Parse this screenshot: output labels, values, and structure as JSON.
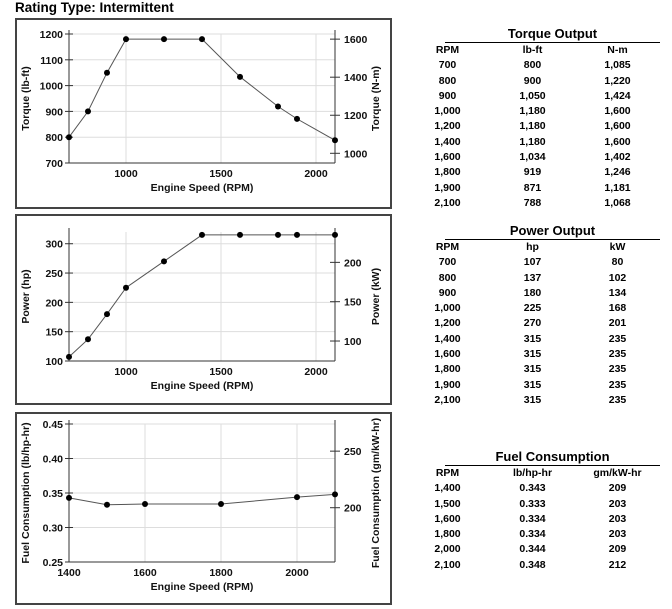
{
  "title": "Rating Type: Intermittent",
  "chart_data": [
    {
      "type": "line",
      "xlabel": "Engine Speed (RPM)",
      "ylabel": "Torque (lb-ft)",
      "y2label": "Torque (N-m)",
      "x": [
        700,
        800,
        900,
        1000,
        1200,
        1400,
        1600,
        1800,
        1900,
        2100
      ],
      "series": [
        {
          "values": [
            800,
            900,
            1050,
            1180,
            1180,
            1180,
            1034,
            919,
            871,
            788
          ]
        }
      ],
      "xlim": [
        700,
        2100
      ],
      "ylim": [
        700,
        1200
      ],
      "y2lim": [
        949,
        1627
      ],
      "xticks": [
        1000,
        1500,
        2000
      ],
      "yticks": [
        700,
        800,
        900,
        1000,
        1100,
        1200
      ],
      "y2ticks": [
        1000,
        1200,
        1400,
        1600
      ],
      "grid": true
    },
    {
      "type": "line",
      "xlabel": "Engine Speed (RPM)",
      "ylabel": "Power (hp)",
      "y2label": "Power (kW)",
      "x": [
        700,
        800,
        900,
        1000,
        1200,
        1400,
        1600,
        1800,
        1900,
        2100
      ],
      "series": [
        {
          "values": [
            107,
            137,
            180,
            225,
            270,
            315,
            315,
            315,
            315,
            315
          ]
        }
      ],
      "xlim": [
        700,
        2100
      ],
      "ylim": [
        100,
        320
      ],
      "y2lim": [
        74.6,
        238.6
      ],
      "xticks": [
        1000,
        1500,
        2000
      ],
      "yticks": [
        100,
        150,
        200,
        250,
        300
      ],
      "y2ticks": [
        100,
        150,
        200
      ],
      "grid": true
    },
    {
      "type": "line",
      "xlabel": "Engine Speed (RPM)",
      "ylabel": "Fuel Consumption (lb/hp-hr)",
      "y2label": "Fuel Consumption (gm/kW-hr)",
      "x": [
        1400,
        1500,
        1600,
        1800,
        2000,
        2100
      ],
      "series": [
        {
          "values": [
            0.343,
            0.333,
            0.334,
            0.334,
            0.344,
            0.348
          ]
        }
      ],
      "xlim": [
        1400,
        2100
      ],
      "ylim": [
        0.25,
        0.45
      ],
      "y2lim": [
        152,
        274
      ],
      "xticks": [
        1400,
        1600,
        1800,
        2000
      ],
      "yticks": [
        0.25,
        0.3,
        0.35,
        0.4,
        0.45
      ],
      "y2ticks": [
        200,
        250
      ],
      "grid": true
    }
  ],
  "tables": [
    {
      "title": "Torque Output",
      "headers": [
        "RPM",
        "lb-ft",
        "N-m"
      ],
      "rows": [
        [
          "700",
          "800",
          "1,085"
        ],
        [
          "800",
          "900",
          "1,220"
        ],
        [
          "900",
          "1,050",
          "1,424"
        ],
        [
          "1,000",
          "1,180",
          "1,600"
        ],
        [
          "1,200",
          "1,180",
          "1,600"
        ],
        [
          "1,400",
          "1,180",
          "1,600"
        ],
        [
          "1,600",
          "1,034",
          "1,402"
        ],
        [
          "1,800",
          "919",
          "1,246"
        ],
        [
          "1,900",
          "871",
          "1,181"
        ],
        [
          "2,100",
          "788",
          "1,068"
        ]
      ]
    },
    {
      "title": "Power Output",
      "headers": [
        "RPM",
        "hp",
        "kW"
      ],
      "rows": [
        [
          "700",
          "107",
          "80"
        ],
        [
          "800",
          "137",
          "102"
        ],
        [
          "900",
          "180",
          "134"
        ],
        [
          "1,000",
          "225",
          "168"
        ],
        [
          "1,200",
          "270",
          "201"
        ],
        [
          "1,400",
          "315",
          "235"
        ],
        [
          "1,600",
          "315",
          "235"
        ],
        [
          "1,800",
          "315",
          "235"
        ],
        [
          "1,900",
          "315",
          "235"
        ],
        [
          "2,100",
          "315",
          "235"
        ]
      ]
    },
    {
      "title": "Fuel Consumption",
      "headers": [
        "RPM",
        "lb/hp-hr",
        "gm/kW-hr"
      ],
      "rows": [
        [
          "1,400",
          "0.343",
          "209"
        ],
        [
          "1,500",
          "0.333",
          "203"
        ],
        [
          "1,600",
          "0.334",
          "203"
        ],
        [
          "1,800",
          "0.334",
          "203"
        ],
        [
          "2,000",
          "0.344",
          "209"
        ],
        [
          "2,100",
          "0.348",
          "212"
        ]
      ]
    }
  ]
}
